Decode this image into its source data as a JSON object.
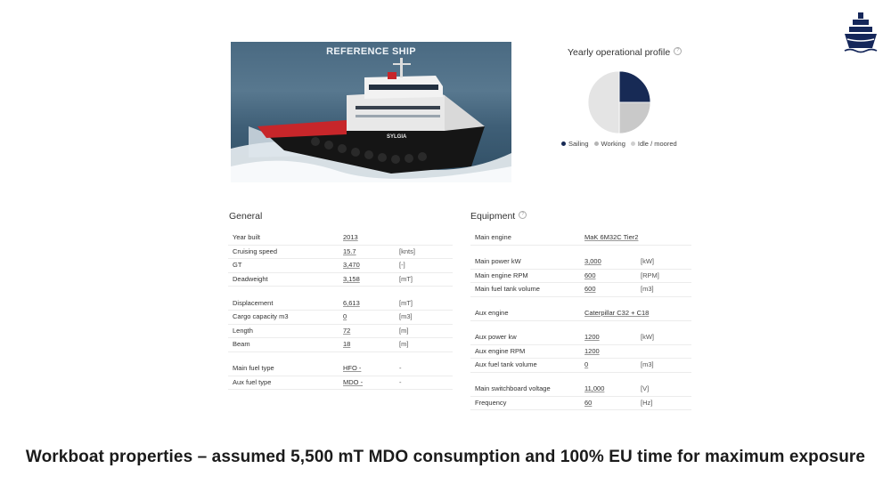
{
  "photo": {
    "label": "REFERENCE SHIP",
    "hull_name": "SYLGIA"
  },
  "chart": {
    "title": "Yearly operational profile"
  },
  "chart_data": {
    "type": "pie",
    "title": "Yearly operational profile",
    "slices": [
      {
        "name": "Sailing",
        "value": 25,
        "color": "#172a55"
      },
      {
        "name": "Working",
        "value": 25,
        "color": "#c9c9c9"
      },
      {
        "name": "Idle / moored",
        "value": 50,
        "color": "#e4e4e4"
      }
    ],
    "legend": "bottom"
  },
  "general": {
    "title": "General",
    "groups": [
      [
        {
          "label": "Year built",
          "value": "2013",
          "unit": ""
        },
        {
          "label": "Cruising speed",
          "value": "15.7",
          "unit": "[knts]"
        },
        {
          "label": "GT",
          "value": "3,470",
          "unit": "[-]"
        },
        {
          "label": "Deadweight",
          "value": "3,158",
          "unit": "[mT]"
        }
      ],
      [
        {
          "label": "Displacement",
          "value": "6,613",
          "unit": "[mT]"
        },
        {
          "label": "Cargo capacity m3",
          "value": "0",
          "unit": "[m3]"
        },
        {
          "label": "Length",
          "value": "72",
          "unit": "[m]"
        },
        {
          "label": "Beam",
          "value": "18",
          "unit": "[m]"
        }
      ],
      [
        {
          "label": "Main fuel type",
          "value": "HFO -",
          "unit": "-"
        },
        {
          "label": "Aux fuel type",
          "value": "MDO -",
          "unit": "-"
        }
      ]
    ]
  },
  "equipment": {
    "title": "Equipment",
    "groups": [
      [
        {
          "label": "Main engine",
          "value": "MaK 6M32C Tier2",
          "unit": ""
        }
      ],
      [
        {
          "label": "Main power kW",
          "value": "3,000",
          "unit": "[kW]"
        },
        {
          "label": "Main engine RPM",
          "value": "600",
          "unit": "[RPM]"
        },
        {
          "label": "Main fuel tank volume",
          "value": "600",
          "unit": "[m3]"
        }
      ],
      [
        {
          "label": "Aux engine",
          "value": "Caterpillar C32 + C18",
          "unit": ""
        }
      ],
      [
        {
          "label": "Aux power kw",
          "value": "1200",
          "unit": "[kW]"
        },
        {
          "label": "Aux engine RPM",
          "value": "1200",
          "unit": ""
        },
        {
          "label": "Aux fuel tank volume",
          "value": "0",
          "unit": "[m3]"
        }
      ],
      [
        {
          "label": "Main switchboard voltage",
          "value": "11,000",
          "unit": "[V]"
        },
        {
          "label": "Frequency",
          "value": "60",
          "unit": "[Hz]"
        }
      ]
    ]
  },
  "headline": "Workboat properties – assumed 5,500 mT MDO consumption and 100% EU time for maximum exposure"
}
